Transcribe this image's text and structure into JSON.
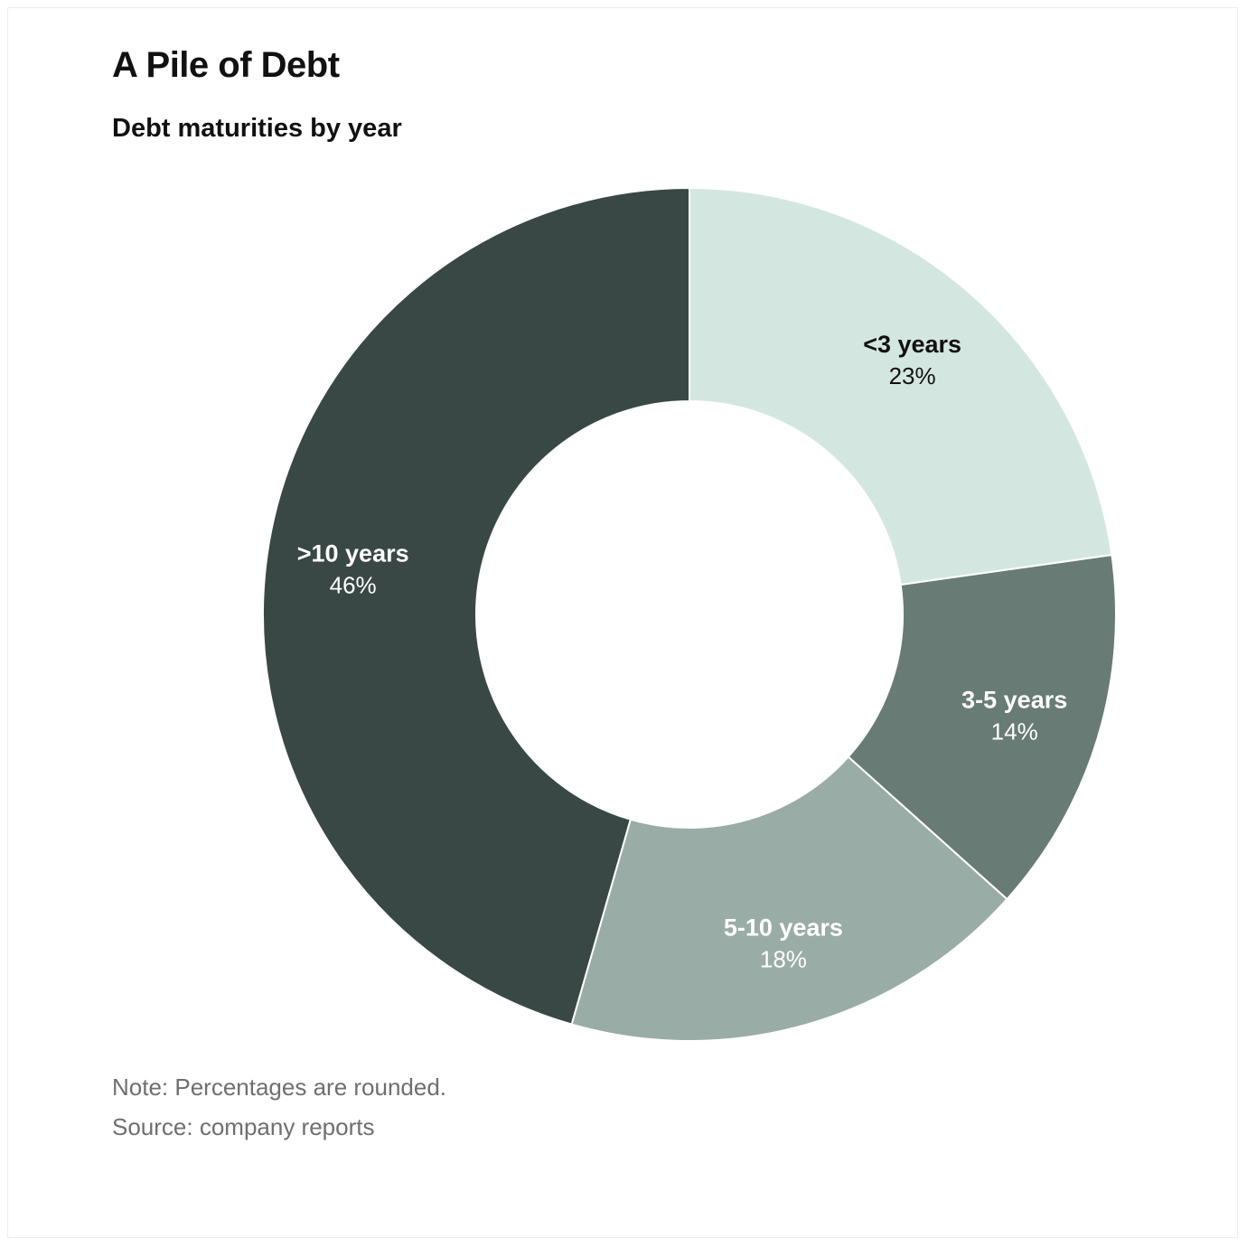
{
  "title": "A Pile of Debt",
  "subtitle": "Debt maturities by year",
  "note": "Note: Percentages are rounded.",
  "source": "Source: company reports",
  "chart_data": {
    "type": "pie",
    "donut": true,
    "start": "12 o'clock",
    "direction": "clockwise",
    "unit": "%",
    "categories": [
      "<3 years",
      "3-5 years",
      "5-10 years",
      ">10 years"
    ],
    "values": [
      23,
      14,
      18,
      46
    ],
    "value_labels": [
      "23%",
      "14%",
      "18%",
      "46%"
    ],
    "colors": [
      "#d4e6e0",
      "#687b75",
      "#9aaca6",
      "#394844"
    ],
    "label_colors": [
      "#111111",
      "#ffffff",
      "#ffffff",
      "#ffffff"
    ],
    "legend": "none"
  }
}
